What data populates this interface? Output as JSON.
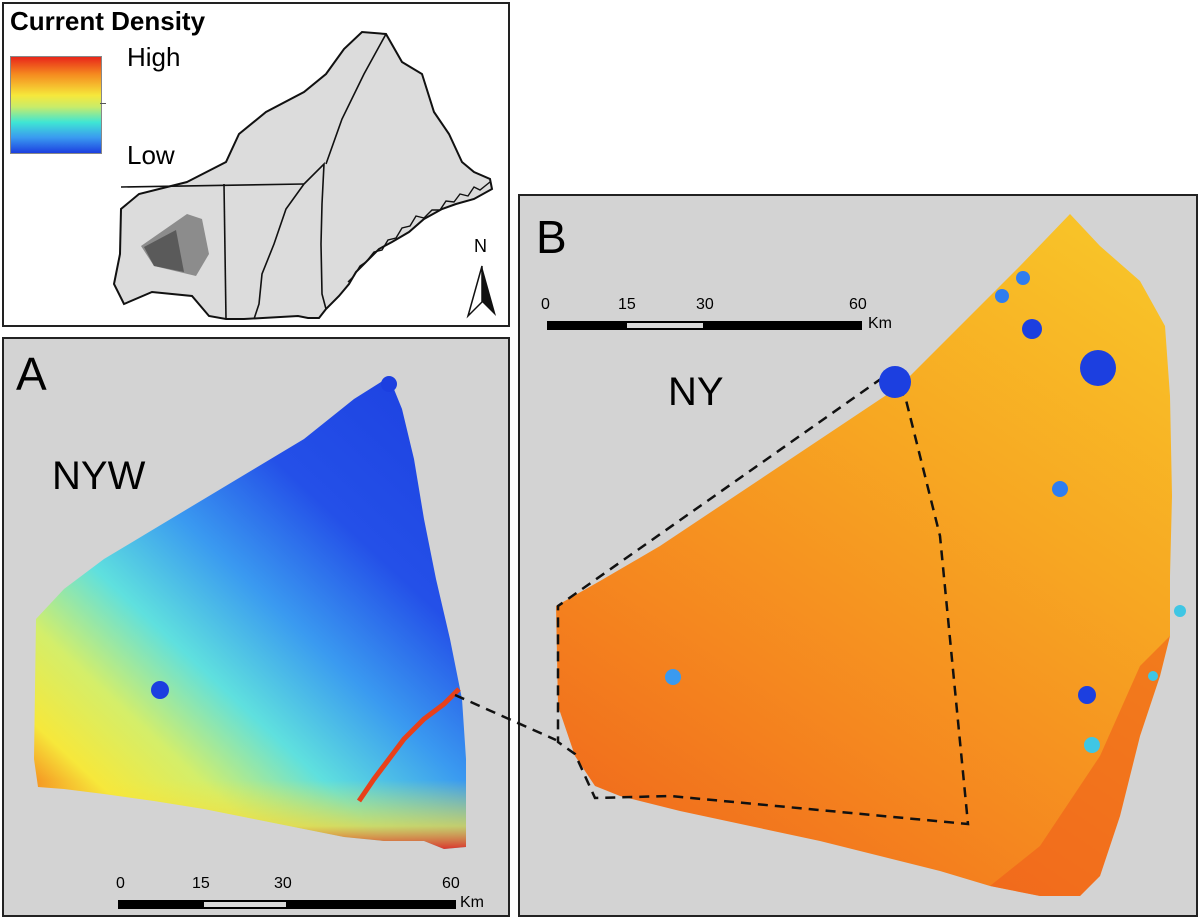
{
  "legend": {
    "title": "Current Density",
    "high_label": "High",
    "low_label": "Low",
    "gradient_colors": [
      "#e8261a",
      "#f58a1f",
      "#f6e83b",
      "#c8ec6a",
      "#3fe6d4",
      "#3a9af0",
      "#1c3fe0"
    ]
  },
  "inset": {
    "north_label": "N"
  },
  "panel_a": {
    "panel_label": "A",
    "region_label": "NYW",
    "scale_ticks": [
      "0",
      "15",
      "30",
      "60"
    ],
    "scale_unit": "Km"
  },
  "panel_b": {
    "panel_label": "B",
    "region_label": "NY",
    "scale_ticks": [
      "0",
      "15",
      "30",
      "60"
    ],
    "scale_unit": "Km"
  },
  "colors": {
    "background": "#d3d3d3",
    "map_gray": "#dcdcdc",
    "high": "#e8261a",
    "low": "#1c3fe0"
  }
}
